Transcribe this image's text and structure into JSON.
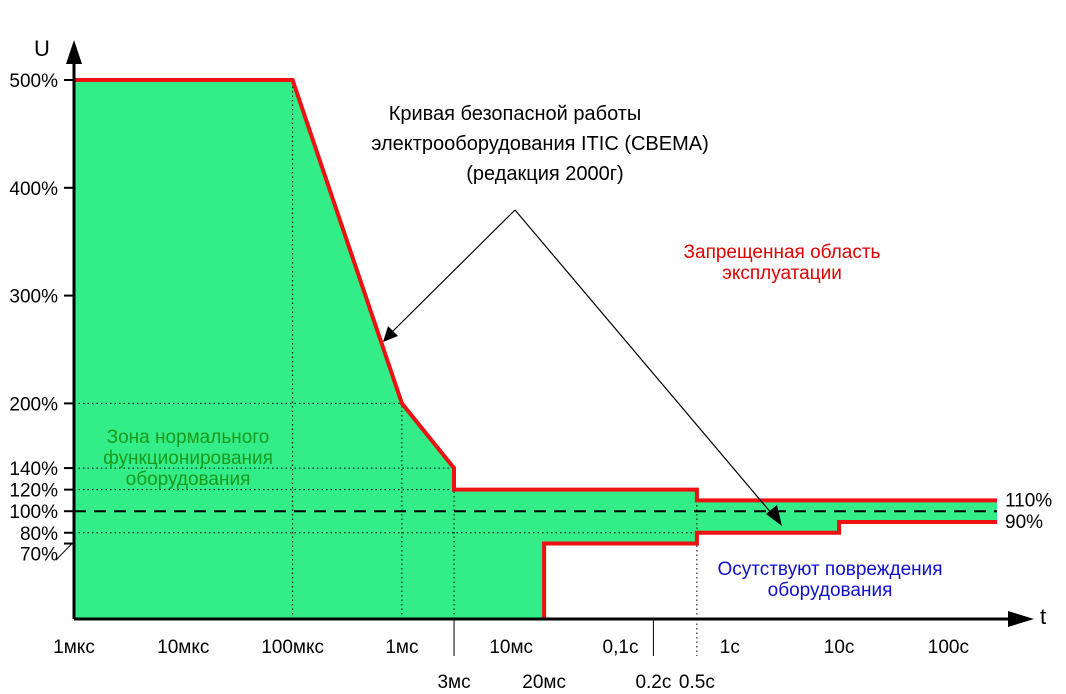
{
  "chart_data": {
    "type": "area",
    "title": "Кривая безопасной работы электрооборудования ITIC (CBEMA) (редакция 2000г)",
    "title_lines": [
      "Кривая безопасной работы",
      "электрооборудования ITIC (CBEMA)",
      "(редакция 2000г)"
    ],
    "xlabel": "t",
    "ylabel": "U",
    "x_scale": "log10, seconds",
    "ylim": [
      0,
      500
    ],
    "x_ticks": [
      {
        "label": "1мкс",
        "value": 1e-06
      },
      {
        "label": "10мкс",
        "value": 1e-05
      },
      {
        "label": "100мкс",
        "value": 0.0001
      },
      {
        "label": "1мс",
        "value": 0.001
      },
      {
        "label": "3мс",
        "value": 0.003
      },
      {
        "label": "10мс",
        "value": 0.01
      },
      {
        "label": "20мс",
        "value": 0.02
      },
      {
        "label": "0,1с",
        "value": 0.1
      },
      {
        "label": "0.2с",
        "value": 0.2
      },
      {
        "label": "0.5с",
        "value": 0.5
      },
      {
        "label": "1с",
        "value": 1
      },
      {
        "label": "10с",
        "value": 10
      },
      {
        "label": "100с",
        "value": 100
      }
    ],
    "y_ticks": [
      {
        "label": "500%",
        "value": 500
      },
      {
        "label": "400%",
        "value": 400
      },
      {
        "label": "300%",
        "value": 300
      },
      {
        "label": "200%",
        "value": 200
      },
      {
        "label": "140%",
        "value": 140
      },
      {
        "label": "120%",
        "value": 120
      },
      {
        "label": "100%",
        "value": 100
      },
      {
        "label": "80%",
        "value": 80
      },
      {
        "label": "70%",
        "value": 70
      }
    ],
    "upper_curve": [
      [
        1e-06,
        500
      ],
      [
        0.0001,
        500
      ],
      [
        0.001,
        200
      ],
      [
        0.003,
        140
      ],
      [
        0.003,
        120
      ],
      [
        0.5,
        120
      ],
      [
        0.5,
        110
      ],
      [
        300,
        110
      ]
    ],
    "lower_curve": [
      [
        0.02,
        0
      ],
      [
        0.02,
        70
      ],
      [
        0.5,
        70
      ],
      [
        0.5,
        80
      ],
      [
        10,
        80
      ],
      [
        10,
        90
      ],
      [
        300,
        90
      ]
    ],
    "nominal_line": {
      "value": 100
    },
    "right_labels": [
      {
        "label": "110%",
        "value": 110
      },
      {
        "label": "90%",
        "value": 90
      }
    ],
    "annotations": {
      "normal_zone": [
        "Зона нормального",
        "функционирования",
        "оборудования"
      ],
      "forbidden_zone": [
        "Запрещенная область",
        "эксплуатации"
      ],
      "no_damage_zone": [
        "Осутствуют повреждения",
        "оборудования"
      ]
    },
    "colors": {
      "fill": "#33ee88",
      "curve": "#ee1111",
      "axis": "#000000",
      "normal_text": "#1a9a1a",
      "forbidden_text": "#e10000",
      "no_damage_text": "#1010cc"
    }
  }
}
